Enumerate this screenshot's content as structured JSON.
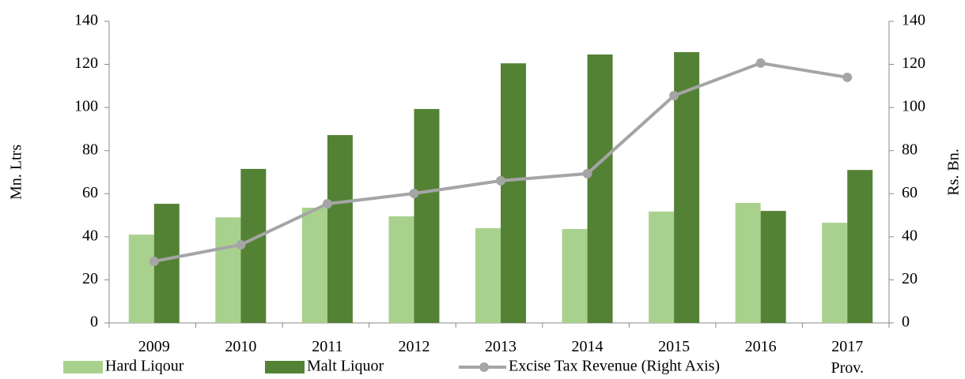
{
  "chart_data": {
    "type": "bar-line",
    "y_label": "Mn. Ltrs",
    "y2_label": "Rs. Bn.",
    "categories": [
      "2009",
      "2010",
      "2011",
      "2012",
      "2013",
      "2014",
      "2015",
      "2016",
      "2017\nProv."
    ],
    "series": [
      {
        "name": "Hard Liqour",
        "type": "bar",
        "color": "#a9d18e",
        "values": [
          41,
          49,
          53.5,
          49.5,
          44,
          43.6,
          51.7,
          55.7,
          46.5
        ]
      },
      {
        "name": "Malt Liquor",
        "type": "bar",
        "color": "#548235",
        "values": [
          55.3,
          71.5,
          87.2,
          99.3,
          120.5,
          124.6,
          125.7,
          52,
          71
        ]
      },
      {
        "name": "Excise Tax Revenue (Right Axis)",
        "type": "line",
        "axis": "y2",
        "color": "#a5a5a5",
        "values": [
          28.6,
          36.3,
          55.3,
          60.1,
          66,
          69.3,
          105.5,
          120.6,
          114
        ]
      }
    ],
    "ylim": [
      0,
      140
    ],
    "yticks": [
      0,
      20,
      40,
      60,
      80,
      100,
      120,
      140
    ],
    "y2lim": [
      0,
      140
    ],
    "y2ticks": [
      0,
      20,
      40,
      60,
      80,
      100,
      120,
      140
    ],
    "grid": false
  }
}
